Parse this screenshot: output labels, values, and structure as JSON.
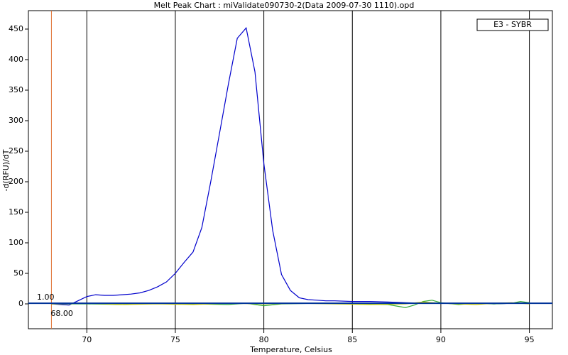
{
  "chart_data": {
    "type": "line",
    "title": "Melt Peak Chart : miValidate090730-2(Data 2009-07-30 1110).opd",
    "x_label": "Temperature, Celsius",
    "y_label": "-d(RFU)/dT",
    "xlim": [
      66.7,
      96.3
    ],
    "ylim": [
      -40.7,
      480.2
    ],
    "xticks": [
      70,
      75,
      80,
      85,
      90,
      95
    ],
    "yticks": [
      0,
      50,
      100,
      150,
      200,
      250,
      300,
      350,
      400,
      450
    ],
    "vertical_grid": true,
    "threshold": {
      "value": 1,
      "label": "1.00",
      "color": "#003399"
    },
    "marker_line": {
      "value": 68,
      "label": "68.00",
      "color": "#e07030"
    },
    "legend_position": "upper right",
    "series": [
      {
        "name": "E3 - SYBR",
        "color": "#0000cc",
        "x": [
          68,
          68.5,
          69,
          69.5,
          70,
          70.5,
          71,
          71.5,
          72,
          72.5,
          73,
          73.5,
          74,
          74.5,
          75,
          75.5,
          76,
          76.5,
          77,
          77.5,
          78,
          78.5,
          79,
          79.5,
          80,
          80.5,
          81,
          81.5,
          82,
          82.5,
          83,
          83.5,
          84,
          85,
          86,
          87,
          88,
          89,
          90,
          91,
          92,
          93,
          94,
          95
        ],
        "values": [
          0,
          -1,
          -2,
          5,
          12,
          15,
          14,
          14,
          15,
          16,
          18,
          22,
          28,
          36,
          50,
          68,
          85,
          125,
          200,
          280,
          360,
          435,
          452,
          380,
          230,
          120,
          48,
          22,
          10,
          7,
          6,
          5,
          5,
          4,
          4,
          3,
          2,
          1,
          1,
          1,
          1,
          0,
          1,
          2
        ]
      },
      {
        "color": "#33aa33",
        "x": [
          68,
          70,
          72,
          74,
          76,
          78,
          79,
          80,
          81,
          83,
          85,
          87,
          88,
          88.5,
          89,
          89.5,
          90,
          91,
          92,
          93,
          94,
          94.5,
          95
        ],
        "values": [
          0,
          0,
          -1,
          1,
          0,
          -1,
          1,
          -3,
          0,
          1,
          0,
          -1,
          -6,
          -2,
          4,
          6,
          2,
          -1,
          1,
          0,
          1,
          4,
          2
        ]
      },
      {
        "color": "#cccc00",
        "x": [
          68,
          70,
          72,
          74,
          76,
          78,
          80,
          82,
          84,
          86,
          88,
          89,
          90,
          91,
          92,
          93,
          94,
          95
        ],
        "values": [
          0,
          1,
          -1,
          0,
          -1,
          1,
          0,
          1,
          0,
          -1,
          0,
          3,
          1,
          0,
          -1,
          1,
          2,
          0
        ]
      }
    ]
  }
}
